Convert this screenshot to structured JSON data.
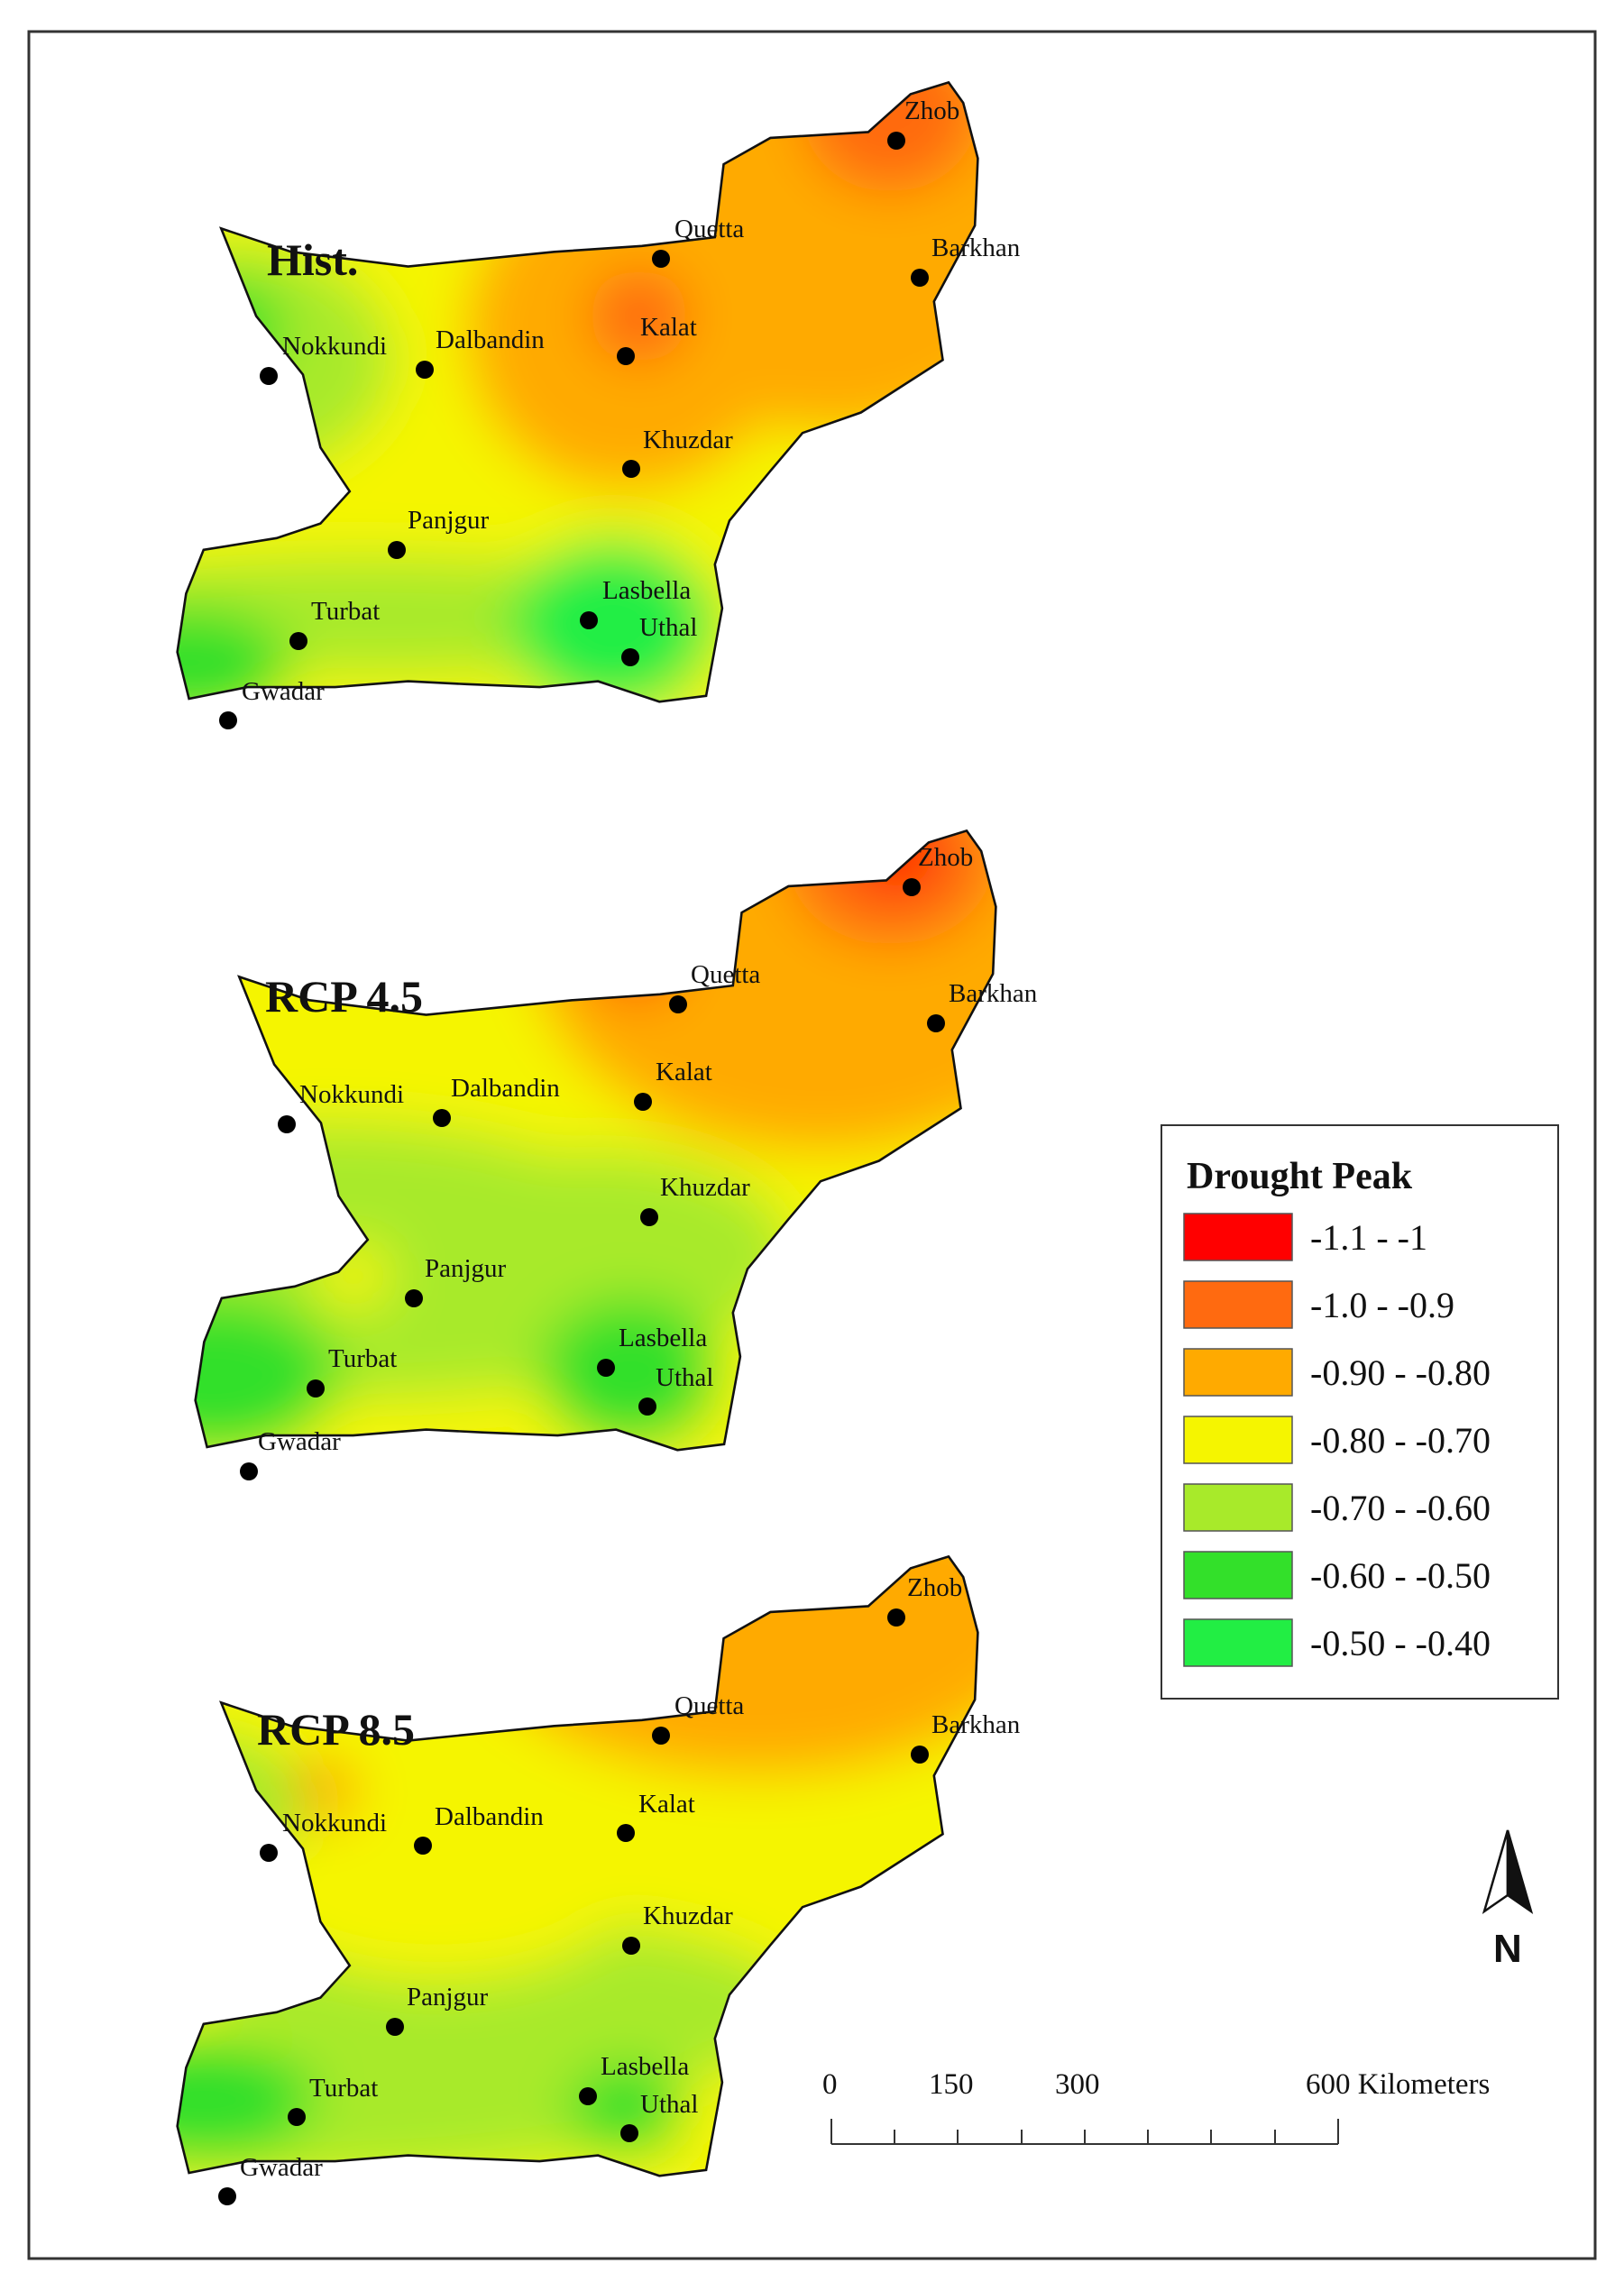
{
  "panels": [
    {
      "title": "Hist.",
      "cities": [
        "Zhob",
        "Quetta",
        "Barkhan",
        "Kalat",
        "Nokkundi",
        "Dalbandin",
        "Khuzdar",
        "Panjgur",
        "Lasbella",
        "Uthal",
        "Turbat",
        "Gwadar"
      ]
    },
    {
      "title": "RCP 4.5",
      "cities": [
        "Zhob",
        "Quetta",
        "Barkhan",
        "Kalat",
        "Nokkundi",
        "Dalbandin",
        "Khuzdar",
        "Panjgur",
        "Lasbella",
        "Uthal",
        "Turbat",
        "Gwadar"
      ]
    },
    {
      "title": "RCP 8.5",
      "cities": [
        "Zhob",
        "Quetta",
        "Barkhan",
        "Kalat",
        "Nokkundi",
        "Dalbandin",
        "Khuzdar",
        "Panjgur",
        "Lasbella",
        "Uthal",
        "Turbat",
        "Gwadar"
      ]
    }
  ],
  "legend": {
    "title": "Drought Peak",
    "classes": [
      {
        "label": "-1.1 - -1",
        "color": "#ff0000"
      },
      {
        "label": "-1.0 - -0.9",
        "color": "#ff6a10"
      },
      {
        "label": "-0.90 - -0.80",
        "color": "#ffaa00"
      },
      {
        "label": "-0.80 - -0.70",
        "color": "#f5f500"
      },
      {
        "label": "-0.70 - -0.60",
        "color": "#a8ea2a"
      },
      {
        "label": "-0.60 - -0.50",
        "color": "#33e02a"
      },
      {
        "label": "-0.50 - -0.40",
        "color": "#22ee44"
      }
    ]
  },
  "scale_bar": {
    "ticks": [
      "0",
      "150",
      "300",
      "600 Kilometers"
    ]
  },
  "north_arrow": {
    "label": "N",
    "icon": "north-arrow-icon"
  }
}
